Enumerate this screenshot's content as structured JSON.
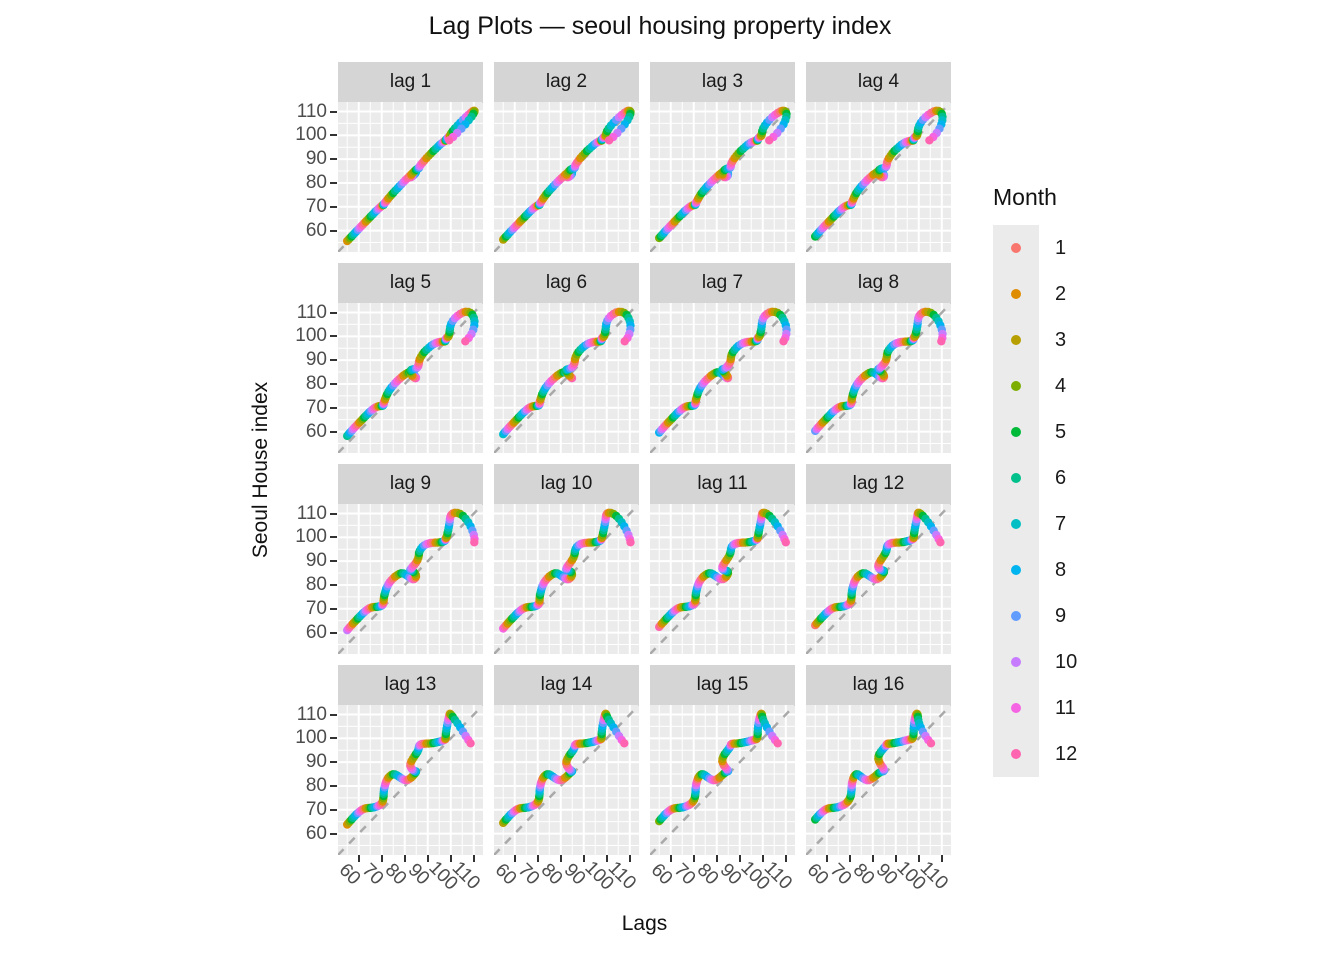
{
  "title": "Lag Plots — seoul housing property index",
  "axes": {
    "x_title": "Lags",
    "y_title": "Seoul House index",
    "ticks": [
      "60",
      "70",
      "80",
      "90",
      "100",
      "110"
    ]
  },
  "facets": [
    {
      "label": "lag 1",
      "lag": 1
    },
    {
      "label": "lag 2",
      "lag": 2
    },
    {
      "label": "lag 3",
      "lag": 3
    },
    {
      "label": "lag 4",
      "lag": 4
    },
    {
      "label": "lag 5",
      "lag": 5
    },
    {
      "label": "lag 6",
      "lag": 6
    },
    {
      "label": "lag 7",
      "lag": 7
    },
    {
      "label": "lag 8",
      "lag": 8
    },
    {
      "label": "lag 9",
      "lag": 9
    },
    {
      "label": "lag 10",
      "lag": 10
    },
    {
      "label": "lag 11",
      "lag": 11
    },
    {
      "label": "lag 12",
      "lag": 12
    },
    {
      "label": "lag 13",
      "lag": 13
    },
    {
      "label": "lag 14",
      "lag": 14
    },
    {
      "label": "lag 15",
      "lag": 15
    },
    {
      "label": "lag 16",
      "lag": 16
    }
  ],
  "legend": {
    "title": "Month",
    "items": [
      {
        "label": "1",
        "color": "#F8766D"
      },
      {
        "label": "2",
        "color": "#DE8C00"
      },
      {
        "label": "3",
        "color": "#B79F00"
      },
      {
        "label": "4",
        "color": "#7CAE00"
      },
      {
        "label": "5",
        "color": "#00BA38"
      },
      {
        "label": "6",
        "color": "#00C08B"
      },
      {
        "label": "7",
        "color": "#00BFC4"
      },
      {
        "label": "8",
        "color": "#00B4F0"
      },
      {
        "label": "9",
        "color": "#619CFF"
      },
      {
        "label": "10",
        "color": "#C77CFF"
      },
      {
        "label": "11",
        "color": "#F564E2"
      },
      {
        "label": "12",
        "color": "#FF64B0"
      }
    ]
  },
  "colors": {
    "panel_bg": "#EBEBEB",
    "strip_bg": "#D5D5D5",
    "grid": "#FFFFFF",
    "tick_text": "#4D4D4D",
    "reference_line": "#A9A9A9"
  },
  "chart_data": {
    "type": "scatter",
    "title": "Lag Plots — seoul housing property index",
    "xlabel": "Lags",
    "ylabel": "Seoul House index",
    "facet_lags": [
      1,
      2,
      3,
      4,
      5,
      6,
      7,
      8,
      9,
      10,
      11,
      12,
      13,
      14,
      15,
      16
    ],
    "axis_ticks": [
      60,
      70,
      80,
      90,
      100,
      110
    ],
    "xlim": [
      51,
      114
    ],
    "ylim": [
      51,
      114
    ],
    "grid": true,
    "legend_position": "right",
    "color_legend": {
      "title": "Month",
      "values": [
        1,
        2,
        3,
        4,
        5,
        6,
        7,
        8,
        9,
        10,
        11,
        12
      ]
    },
    "reference_line": {
      "type": "identity y=x",
      "style": "dashed",
      "color": "#A9A9A9"
    },
    "point_rule": "facet 'lag k' plots (index[t-k], index[t]); point colored by calendar month of t",
    "series": {
      "name": "Seoul House index (monthly)",
      "start_month": 1,
      "values": [
        55.0,
        55.6,
        56.2,
        56.9,
        57.5,
        58.2,
        58.9,
        59.6,
        60.3,
        61.0,
        61.7,
        62.4,
        63.1,
        63.8,
        64.5,
        65.2,
        65.9,
        66.6,
        67.3,
        68.0,
        68.6,
        69.2,
        69.7,
        70.1,
        70.4,
        70.6,
        70.7,
        70.8,
        70.8,
        70.9,
        71.0,
        71.2,
        71.4,
        71.7,
        72.0,
        72.4,
        72.9,
        73.5,
        74.2,
        75.0,
        75.8,
        76.7,
        77.6,
        78.5,
        79.4,
        80.3,
        81.2,
        82.0,
        82.8,
        83.5,
        84.1,
        84.6,
        84.9,
        84.8,
        84.4,
        83.8,
        83.2,
        82.7,
        82.4,
        82.5,
        82.9,
        83.5,
        84.2,
        84.9,
        85.5,
        85.9,
        86.1,
        86.2,
        86.5,
        87.0,
        87.7,
        88.5,
        89.4,
        90.4,
        91.4,
        92.4,
        93.4,
        94.3,
        95.2,
        96.0,
        96.6,
        97.1,
        97.4,
        97.6,
        97.7,
        97.8,
        97.8,
        97.9,
        98.0,
        98.2,
        98.4,
        98.6,
        98.9,
        99.1,
        99.3,
        99.5,
        99.6,
        99.8,
        100.2,
        100.9,
        101.8,
        102.9,
        104.1,
        105.3,
        106.5,
        107.6,
        108.6,
        109.4,
        110.0,
        110.3,
        110.2,
        109.8,
        109.0,
        107.8,
        106.3,
        104.6,
        102.8,
        101.0,
        99.3,
        97.9
      ]
    }
  }
}
